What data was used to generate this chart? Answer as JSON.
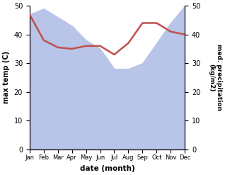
{
  "months": [
    "Jan",
    "Feb",
    "Mar",
    "Apr",
    "May",
    "Jun",
    "Jul",
    "Aug",
    "Sep",
    "Oct",
    "Nov",
    "Dec"
  ],
  "precipitation": [
    47,
    49,
    46,
    43,
    38,
    35,
    28,
    28,
    30,
    37,
    44,
    50
  ],
  "temperature": [
    47,
    38,
    35.5,
    35,
    36,
    36,
    33,
    37,
    44,
    44,
    41,
    40
  ],
  "temp_color": "#c0504d",
  "precip_fill_color": "#b8c4e8",
  "ylabel_left": "max temp (C)",
  "ylabel_right": "med. precipitation\n(kg/m2)",
  "xlabel": "date (month)",
  "ylim_left": [
    0,
    50
  ],
  "ylim_right": [
    0,
    50
  ],
  "yticks": [
    0,
    10,
    20,
    30,
    40,
    50
  ],
  "right_yticks": [
    0,
    10,
    20,
    30,
    40,
    50
  ],
  "bg_color": "#ffffff"
}
